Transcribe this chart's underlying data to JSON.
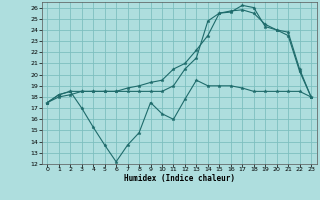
{
  "xlabel": "Humidex (Indice chaleur)",
  "bg_color": "#aedede",
  "grid_color": "#7dbfbf",
  "line_color": "#1e6b6b",
  "xlim": [
    -0.5,
    23.5
  ],
  "ylim": [
    12,
    26.5
  ],
  "xticks": [
    0,
    1,
    2,
    3,
    4,
    5,
    6,
    7,
    8,
    9,
    10,
    11,
    12,
    13,
    14,
    15,
    16,
    17,
    18,
    19,
    20,
    21,
    22,
    23
  ],
  "yticks": [
    12,
    13,
    14,
    15,
    16,
    17,
    18,
    19,
    20,
    21,
    22,
    23,
    24,
    25,
    26
  ],
  "line1_x": [
    0,
    1,
    2,
    3,
    4,
    5,
    6,
    7,
    8,
    9,
    10,
    11,
    12,
    13,
    14,
    15,
    16,
    17,
    18,
    19,
    20,
    21,
    22,
    23
  ],
  "line1_y": [
    17.5,
    18.2,
    18.5,
    17.0,
    15.3,
    13.7,
    12.2,
    13.7,
    14.8,
    17.5,
    16.5,
    16.0,
    17.8,
    19.5,
    19.0,
    19.0,
    19.0,
    18.8,
    18.5,
    18.5,
    18.5,
    18.5,
    18.5,
    18.0
  ],
  "line2_x": [
    0,
    1,
    2,
    3,
    4,
    5,
    6,
    7,
    8,
    9,
    10,
    11,
    12,
    13,
    14,
    15,
    16,
    17,
    18,
    19,
    20,
    21,
    22,
    23
  ],
  "line2_y": [
    17.5,
    18.2,
    18.5,
    18.5,
    18.5,
    18.5,
    18.5,
    18.8,
    19.0,
    19.3,
    19.5,
    20.5,
    21.0,
    22.2,
    23.5,
    25.5,
    25.6,
    26.2,
    26.0,
    24.3,
    24.0,
    23.5,
    20.3,
    18.0
  ],
  "line3_x": [
    0,
    1,
    2,
    3,
    4,
    5,
    6,
    7,
    8,
    9,
    10,
    11,
    12,
    13,
    14,
    15,
    16,
    17,
    18,
    19,
    20,
    21,
    22,
    23
  ],
  "line3_y": [
    17.5,
    18.0,
    18.2,
    18.5,
    18.5,
    18.5,
    18.5,
    18.5,
    18.5,
    18.5,
    18.5,
    19.0,
    20.5,
    21.5,
    24.8,
    25.5,
    25.7,
    25.8,
    25.5,
    24.5,
    24.0,
    23.8,
    20.5,
    18.0
  ]
}
